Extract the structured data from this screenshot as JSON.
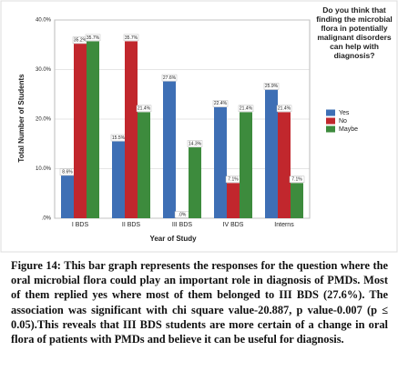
{
  "chart_data": {
    "type": "bar",
    "categories": [
      "I BDS",
      "II BDS",
      "III BDS",
      "IV BDS",
      "Interns"
    ],
    "series": [
      {
        "name": "Yes",
        "color": "#3e6fb5",
        "values": [
          8.6,
          15.5,
          27.6,
          22.4,
          25.9
        ],
        "value_labels": [
          "8.6%",
          "15.5%",
          "27.6%",
          "22.4%",
          "25.9%"
        ]
      },
      {
        "name": "No",
        "color": "#c1272d",
        "values": [
          35.2,
          35.7,
          0,
          7.1,
          21.4
        ],
        "value_labels": [
          "35.2%",
          "35.7%",
          ".0%",
          "7.1%",
          "21.4%"
        ]
      },
      {
        "name": "Maybe",
        "color": "#3d8b3d",
        "values": [
          35.7,
          21.4,
          14.3,
          21.4,
          7.1
        ],
        "value_labels": [
          "35.7%",
          "21.4%",
          "14.3%",
          "21.4%",
          "7.1%"
        ]
      }
    ],
    "ylim": [
      0,
      40
    ],
    "yticks": [
      {
        "value": 0,
        "label": ".0%"
      },
      {
        "value": 10,
        "label": "10.0%"
      },
      {
        "value": 20,
        "label": "20.0%"
      },
      {
        "value": 30,
        "label": "30.0%"
      },
      {
        "value": 40,
        "label": "40.0%"
      }
    ],
    "xlabel": "Year of Study",
    "ylabel": "Total Number of Students",
    "legend_title": "Do you think that finding the microbial flora in potentially malignant disorders can help with diagnosis?",
    "legend_position": "right"
  },
  "caption": {
    "label": "Figure 14:",
    "text": "This bar graph represents the responses for the question where the oral microbial flora could play an important role in diagnosis of PMDs. Most of them replied yes where most of them belonged to III BDS (27.6%). The association was significant with chi square value-20.887, p value-0.007 (p ≤ 0.05).This reveals that III BDS students are more certain of a change in oral flora of patients with PMDs and believe it can be useful for diagnosis."
  }
}
